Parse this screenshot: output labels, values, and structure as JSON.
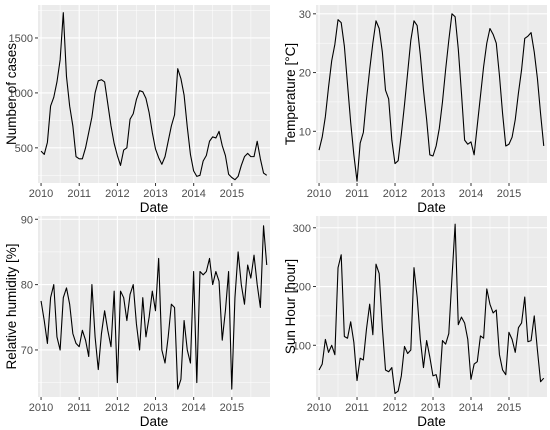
{
  "chart_data": [
    {
      "type": "line",
      "xlabel": "Date",
      "ylabel": "Number of cases",
      "xlim": [
        2009.92,
        2016.0
      ],
      "ylim": [
        180,
        1800
      ],
      "xticks": [
        2010,
        2011,
        2012,
        2013,
        2014,
        2015
      ],
      "yticks": [
        500,
        1000,
        1500
      ],
      "grid": true,
      "series": [
        {
          "x_start": 2010.0,
          "x_step": 0.0833,
          "values": [
            470,
            440,
            550,
            880,
            960,
            1100,
            1300,
            1730,
            1150,
            880,
            700,
            420,
            400,
            400,
            500,
            640,
            780,
            1000,
            1110,
            1120,
            1100,
            900,
            700,
            540,
            430,
            340,
            480,
            500,
            760,
            810,
            940,
            1020,
            1010,
            950,
            820,
            640,
            490,
            410,
            350,
            420,
            560,
            700,
            800,
            1220,
            1130,
            980,
            690,
            440,
            290,
            240,
            250,
            380,
            430,
            560,
            600,
            590,
            650,
            520,
            430,
            260,
            230,
            210,
            240,
            340,
            420,
            450,
            420,
            420,
            560,
            400,
            270,
            250
          ]
        }
      ]
    },
    {
      "type": "line",
      "xlabel": "Date",
      "ylabel": "Temperature [°C]",
      "xlim": [
        2009.92,
        2016.0
      ],
      "ylim": [
        1.2,
        31.5
      ],
      "xticks": [
        2010,
        2011,
        2012,
        2013,
        2014,
        2015
      ],
      "yticks": [
        10,
        20,
        30
      ],
      "grid": true,
      "series": [
        {
          "x_start": 2010.0,
          "x_step": 0.0833,
          "values": [
            6.8,
            9.0,
            12.5,
            17.5,
            22.0,
            24.8,
            29.0,
            28.5,
            24.5,
            18.0,
            11.5,
            6.0,
            1.5,
            8.0,
            9.8,
            15.5,
            20.5,
            25.0,
            28.8,
            27.5,
            23.5,
            17.0,
            15.5,
            8.5,
            4.5,
            5.0,
            9.5,
            14.5,
            20.0,
            25.5,
            28.8,
            28.0,
            23.0,
            17.0,
            12.0,
            6.0,
            5.8,
            7.5,
            10.5,
            15.0,
            20.5,
            25.5,
            30.0,
            29.5,
            24.0,
            16.5,
            8.5,
            7.8,
            8.2,
            6.0,
            11.0,
            16.0,
            21.0,
            25.0,
            27.5,
            26.5,
            25.0,
            19.5,
            13.0,
            7.5,
            7.8,
            9.0,
            12.0,
            16.5,
            20.5,
            25.8,
            26.2,
            26.8,
            23.5,
            19.0,
            13.0,
            7.5
          ]
        }
      ]
    },
    {
      "type": "line",
      "xlabel": "Date",
      "ylabel": "Relative humidity [%]",
      "xlim": [
        2009.92,
        2016.0
      ],
      "ylim": [
        62.8,
        90.5
      ],
      "xticks": [
        2010,
        2011,
        2012,
        2013,
        2014,
        2015
      ],
      "yticks": [
        70,
        80,
        90
      ],
      "grid": true,
      "series": [
        {
          "x_start": 2010.0,
          "x_step": 0.0833,
          "values": [
            77.5,
            74.5,
            71,
            78,
            80,
            72,
            70,
            78,
            79.5,
            77,
            72.5,
            71,
            70.5,
            73,
            71.5,
            69,
            80,
            72,
            67,
            72.5,
            76,
            73,
            70.5,
            79,
            65,
            79,
            78,
            74.5,
            78.5,
            80,
            74,
            70,
            78,
            72,
            75,
            79,
            76,
            84,
            70,
            68,
            72,
            77,
            76.5,
            64,
            65.5,
            74.5,
            70,
            68,
            82,
            65,
            82,
            81.5,
            82,
            84,
            80,
            82,
            80.5,
            71.5,
            76,
            82,
            64,
            78,
            85,
            80,
            77,
            83,
            81,
            84.5,
            80,
            76.5,
            89,
            83
          ]
        }
      ]
    },
    {
      "type": "line",
      "xlabel": "Date",
      "ylabel": "Sun Hour [hour]",
      "xlim": [
        2009.92,
        2016.0
      ],
      "ylim": [
        12,
        320
      ],
      "xticks": [
        2010,
        2011,
        2012,
        2013,
        2014,
        2015
      ],
      "yticks": [
        100,
        200,
        300
      ],
      "grid": true,
      "series": [
        {
          "x_start": 2010.0,
          "x_step": 0.0833,
          "values": [
            58,
            68,
            110,
            88,
            100,
            84,
            232,
            254,
            115,
            112,
            140,
            105,
            40,
            78,
            75,
            128,
            170,
            118,
            238,
            222,
            130,
            58,
            55,
            62,
            18,
            22,
            48,
            98,
            86,
            92,
            232,
            182,
            110,
            62,
            108,
            80,
            48,
            50,
            28,
            108,
            102,
            120,
            215,
            306,
            135,
            148,
            138,
            110,
            42,
            68,
            72,
            116,
            112,
            196,
            170,
            155,
            160,
            84,
            58,
            50,
            122,
            110,
            88,
            130,
            138,
            182,
            106,
            108,
            150,
            92,
            38,
            44
          ]
        }
      ]
    }
  ]
}
